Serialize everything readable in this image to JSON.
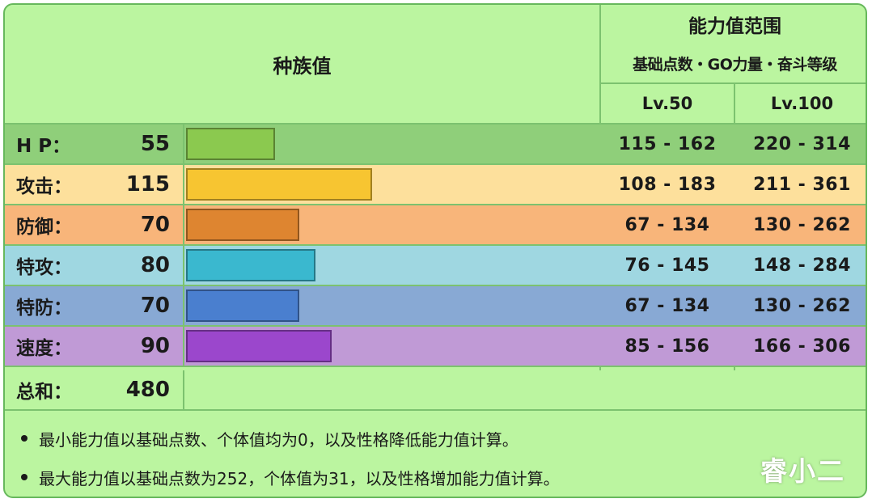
{
  "header": {
    "title": "种族值",
    "range_title": "能力值范围",
    "range_subtitle": "基础点数・GO力量・奋斗等级",
    "lv50": "Lv.50",
    "lv100": "Lv.100"
  },
  "max_stat": 255,
  "rows": [
    {
      "label": "H P：",
      "value": "55",
      "bar": 55,
      "range50": "115 - 162",
      "range100": "220 - 314",
      "bg": "#8fcf7a",
      "bar_color": "#8bc94f"
    },
    {
      "label": "攻击：",
      "value": "115",
      "bar": 115,
      "range50": "108 - 183",
      "range100": "211 - 361",
      "bg": "#fde09c",
      "bar_color": "#f7c531"
    },
    {
      "label": "防御：",
      "value": "70",
      "bar": 70,
      "range50": "67 - 134",
      "range100": "130 - 262",
      "bg": "#f8b57a",
      "bar_color": "#de8530"
    },
    {
      "label": "特攻：",
      "value": "80",
      "bar": 80,
      "range50": "76 - 145",
      "range100": "148 - 284",
      "bg": "#9fd7e1",
      "bar_color": "#3ab8cf"
    },
    {
      "label": "特防：",
      "value": "70",
      "bar": 70,
      "range50": "67 - 134",
      "range100": "130 - 262",
      "bg": "#88a9d4",
      "bar_color": "#4a7fcf"
    },
    {
      "label": "速度：",
      "value": "90",
      "bar": 90,
      "range50": "85 - 156",
      "range100": "166 - 306",
      "bg": "#c09ad6",
      "bar_color": "#9b47cc"
    }
  ],
  "total": {
    "label": "总和：",
    "value": "480"
  },
  "notes": [
    "最小能力值以基础点数、个体值均为0，以及性格降低能力值计算。",
    "最大能力值以基础点数为252，个体值为31，以及性格增加能力值计算。"
  ],
  "watermark": "睿小二"
}
